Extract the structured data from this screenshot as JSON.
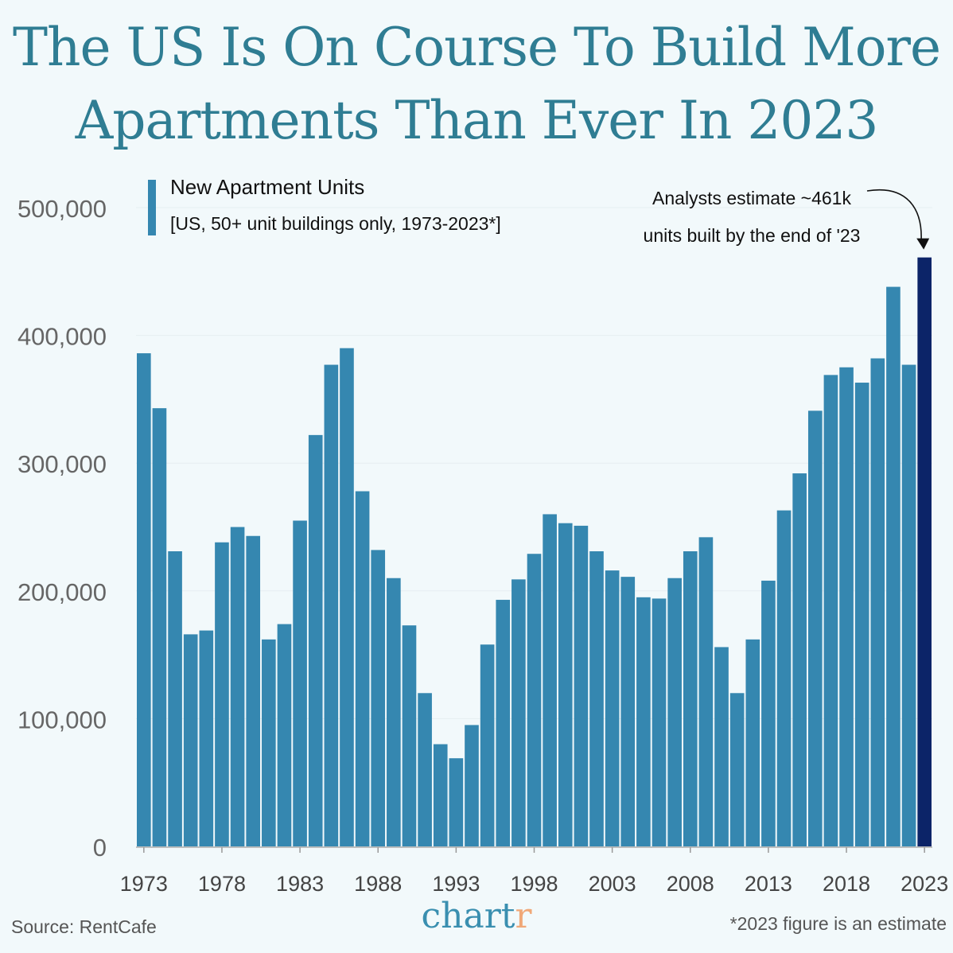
{
  "title_line1": "The US Is On Course To Build More",
  "title_line2": "Apartments Than Ever In 2023",
  "legend": {
    "title": "New Apartment Units",
    "subtitle": "[US, 50+ unit buildings only, 1973-2023*]"
  },
  "annotation": {
    "line1": "Analysts estimate ~461k",
    "line2": "units built by the end of '23"
  },
  "source": "Source: RentCafe",
  "footnote": "*2023 figure is an estimate",
  "brand": {
    "main": "chart",
    "accent": "r"
  },
  "colors": {
    "bar": "#3587b0",
    "highlight": "#0c2468",
    "title": "#2f7d93",
    "background": "#f2f9fb",
    "brand_accent": "#f0a878"
  },
  "chart_data": {
    "type": "bar",
    "categories": [
      1973,
      1974,
      1975,
      1976,
      1977,
      1978,
      1979,
      1980,
      1981,
      1982,
      1983,
      1984,
      1985,
      1986,
      1987,
      1988,
      1989,
      1990,
      1991,
      1992,
      1993,
      1994,
      1995,
      1996,
      1997,
      1998,
      1999,
      2000,
      2001,
      2002,
      2003,
      2004,
      2005,
      2006,
      2007,
      2008,
      2009,
      2010,
      2011,
      2012,
      2013,
      2014,
      2015,
      2016,
      2017,
      2018,
      2019,
      2020,
      2021,
      2022,
      2023
    ],
    "values": [
      386000,
      343000,
      231000,
      166000,
      169000,
      238000,
      250000,
      243000,
      162000,
      174000,
      255000,
      322000,
      377000,
      390000,
      278000,
      232000,
      210000,
      173000,
      120000,
      80000,
      69000,
      95000,
      158000,
      193000,
      209000,
      229000,
      260000,
      253000,
      251000,
      231000,
      216000,
      211000,
      195000,
      194000,
      210000,
      231000,
      242000,
      156000,
      120000,
      162000,
      208000,
      263000,
      292000,
      341000,
      369000,
      375000,
      363000,
      382000,
      438000,
      377000,
      461000
    ],
    "highlight": "2023",
    "x_tick_labels": [
      "1973",
      "1978",
      "1983",
      "1988",
      "1993",
      "1998",
      "2003",
      "2008",
      "2013",
      "2018",
      "2023"
    ],
    "y_tick_labels": [
      "0",
      "100,000",
      "200,000",
      "300,000",
      "400,000",
      "500,000"
    ],
    "ylim": [
      0,
      500000
    ],
    "grid": true,
    "legend_position": "top-left"
  }
}
